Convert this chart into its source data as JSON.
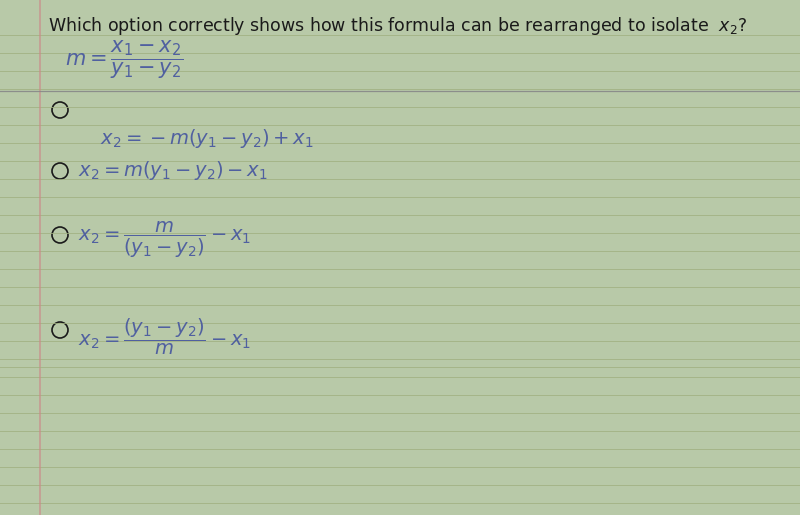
{
  "bg_color": "#b8c9a8",
  "paper_color": "#dde4cc",
  "formula_color": "#5060a0",
  "text_color": "#1a1a1a",
  "line_color": "#a0b080",
  "sep_color": "#888888",
  "red_line_color": "#cc8888",
  "figsize": [
    8.0,
    5.15
  ],
  "dpi": 100,
  "title_fs": 12.5,
  "formula_fs": 15,
  "option_fs": 14
}
